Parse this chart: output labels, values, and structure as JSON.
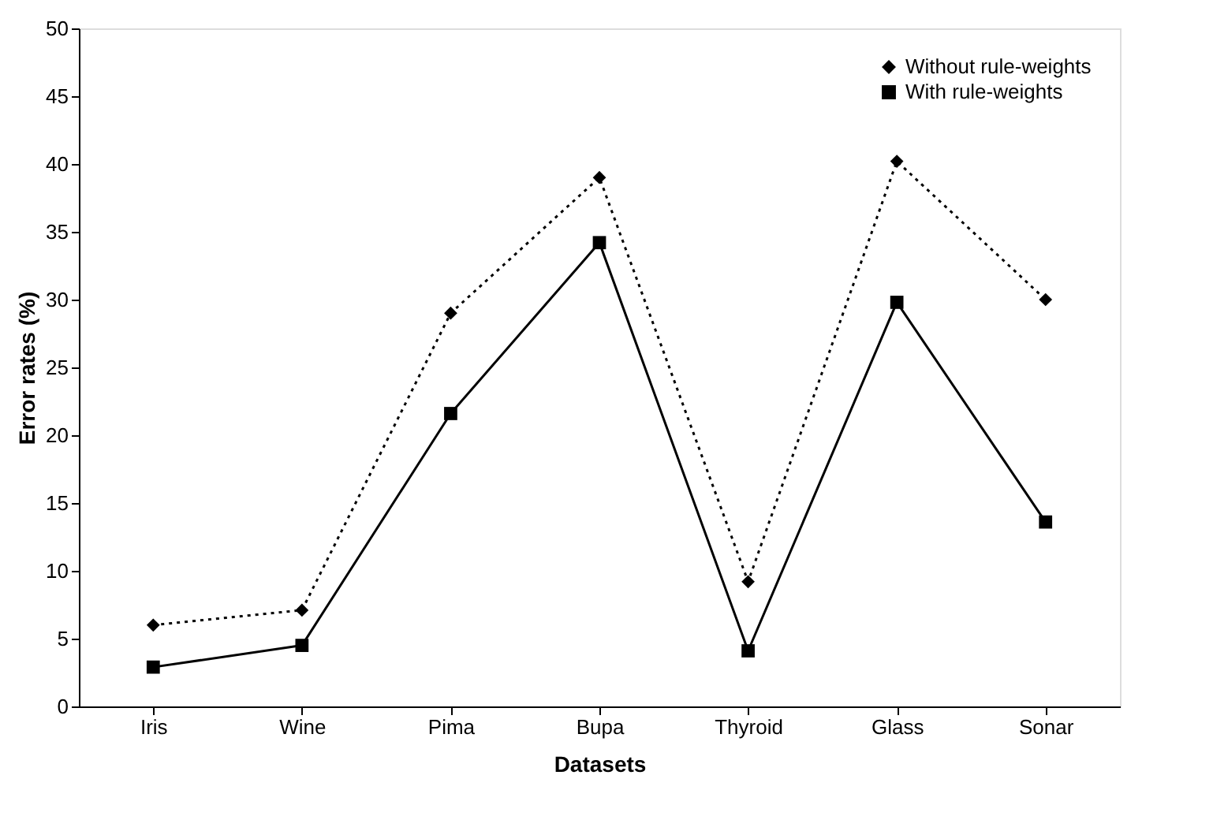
{
  "chart_data": {
    "type": "line",
    "xlabel": "Datasets",
    "ylabel": "Error rates (%)",
    "categories": [
      "Iris",
      "Wine",
      "Pima",
      "Bupa",
      "Thyroid",
      "Glass",
      "Sonar"
    ],
    "series": [
      {
        "name": "Without rule-weights",
        "color": "#000000",
        "marker": "diamond",
        "line_style": "dotted",
        "values": [
          6.0,
          7.1,
          29.0,
          39.0,
          9.2,
          40.2,
          30.0
        ]
      },
      {
        "name": "With rule-weights",
        "color": "#000000",
        "marker": "square",
        "line_style": "solid",
        "values": [
          2.9,
          4.5,
          21.6,
          34.2,
          4.1,
          29.8,
          13.6
        ]
      }
    ],
    "ylim": [
      0,
      50
    ],
    "yticks": [
      0,
      5,
      10,
      15,
      20,
      25,
      30,
      35,
      40,
      45,
      50
    ],
    "grid": false,
    "legend": "top right"
  }
}
